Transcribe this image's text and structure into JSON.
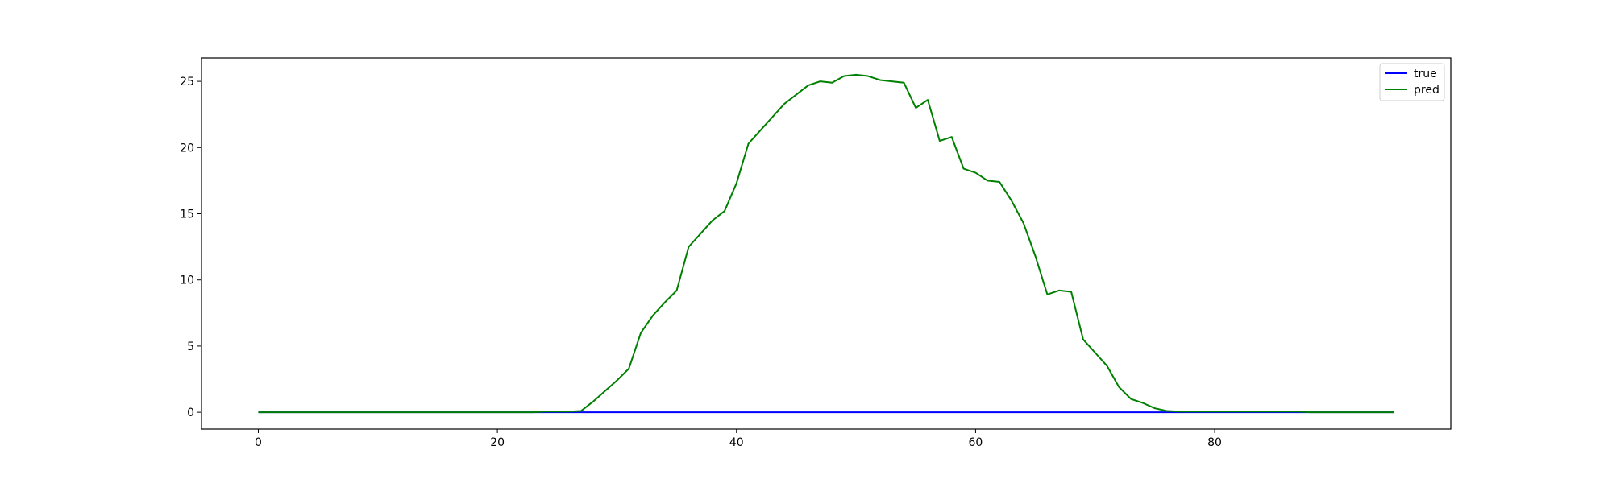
{
  "chart_data": {
    "type": "line",
    "xlim": [
      -4.75,
      99.75
    ],
    "ylim": [
      -1.27,
      26.77
    ],
    "grid": false,
    "legend_position": "top-right",
    "xticks": [
      0,
      20,
      40,
      60,
      80
    ],
    "yticks": [
      0,
      5,
      10,
      15,
      20,
      25
    ],
    "x": [
      0,
      1,
      2,
      3,
      4,
      5,
      6,
      7,
      8,
      9,
      10,
      11,
      12,
      13,
      14,
      15,
      16,
      17,
      18,
      19,
      20,
      21,
      22,
      23,
      24,
      25,
      26,
      27,
      28,
      29,
      30,
      31,
      32,
      33,
      34,
      35,
      36,
      37,
      38,
      39,
      40,
      41,
      42,
      43,
      44,
      45,
      46,
      47,
      48,
      49,
      50,
      51,
      52,
      53,
      54,
      55,
      56,
      57,
      58,
      59,
      60,
      61,
      62,
      63,
      64,
      65,
      66,
      67,
      68,
      69,
      70,
      71,
      72,
      73,
      74,
      75,
      76,
      77,
      78,
      79,
      80,
      81,
      82,
      83,
      84,
      85,
      86,
      87,
      88,
      89,
      90,
      91,
      92,
      93,
      94,
      95
    ],
    "series": [
      {
        "name": "true",
        "color": "#0000ff",
        "values": [
          0,
          0,
          0,
          0,
          0,
          0,
          0,
          0,
          0,
          0,
          0,
          0,
          0,
          0,
          0,
          0,
          0,
          0,
          0,
          0,
          0,
          0,
          0,
          0,
          0,
          0,
          0,
          0,
          0,
          0,
          0,
          0,
          0,
          0,
          0,
          0,
          0,
          0,
          0,
          0,
          0,
          0,
          0,
          0,
          0,
          0,
          0,
          0,
          0,
          0,
          0,
          0,
          0,
          0,
          0,
          0,
          0,
          0,
          0,
          0,
          0,
          0,
          0,
          0,
          0,
          0,
          0,
          0,
          0,
          0,
          0,
          0,
          0,
          0,
          0,
          0,
          0,
          0,
          0,
          0,
          0,
          0,
          0,
          0,
          0,
          0,
          0,
          0,
          0,
          0,
          0,
          0,
          0,
          0,
          0,
          0
        ]
      },
      {
        "name": "pred",
        "color": "#008000",
        "values": [
          0,
          0,
          0,
          0,
          0,
          0,
          0,
          0,
          0,
          0,
          0,
          0,
          0,
          0,
          0,
          0,
          0,
          0,
          0,
          0,
          0,
          0,
          0,
          0,
          0.05,
          0.05,
          0.05,
          0.1,
          0.8,
          1.6,
          2.4,
          3.3,
          6.0,
          7.3,
          8.3,
          9.2,
          12.5,
          13.5,
          14.5,
          15.2,
          17.3,
          20.3,
          21.3,
          22.3,
          23.3,
          24.0,
          24.7,
          25.0,
          24.9,
          25.4,
          25.5,
          25.4,
          25.1,
          25.0,
          24.9,
          23.0,
          23.6,
          20.5,
          20.8,
          18.4,
          18.1,
          17.5,
          17.4,
          16.0,
          14.3,
          11.8,
          8.9,
          9.2,
          9.1,
          5.5,
          4.5,
          3.5,
          1.9,
          1.0,
          0.7,
          0.3,
          0.1,
          0.05,
          0.05,
          0.05,
          0.05,
          0.05,
          0.05,
          0.05,
          0.05,
          0.05,
          0.05,
          0.05,
          0,
          0,
          0,
          0,
          0,
          0,
          0,
          0
        ]
      }
    ]
  }
}
